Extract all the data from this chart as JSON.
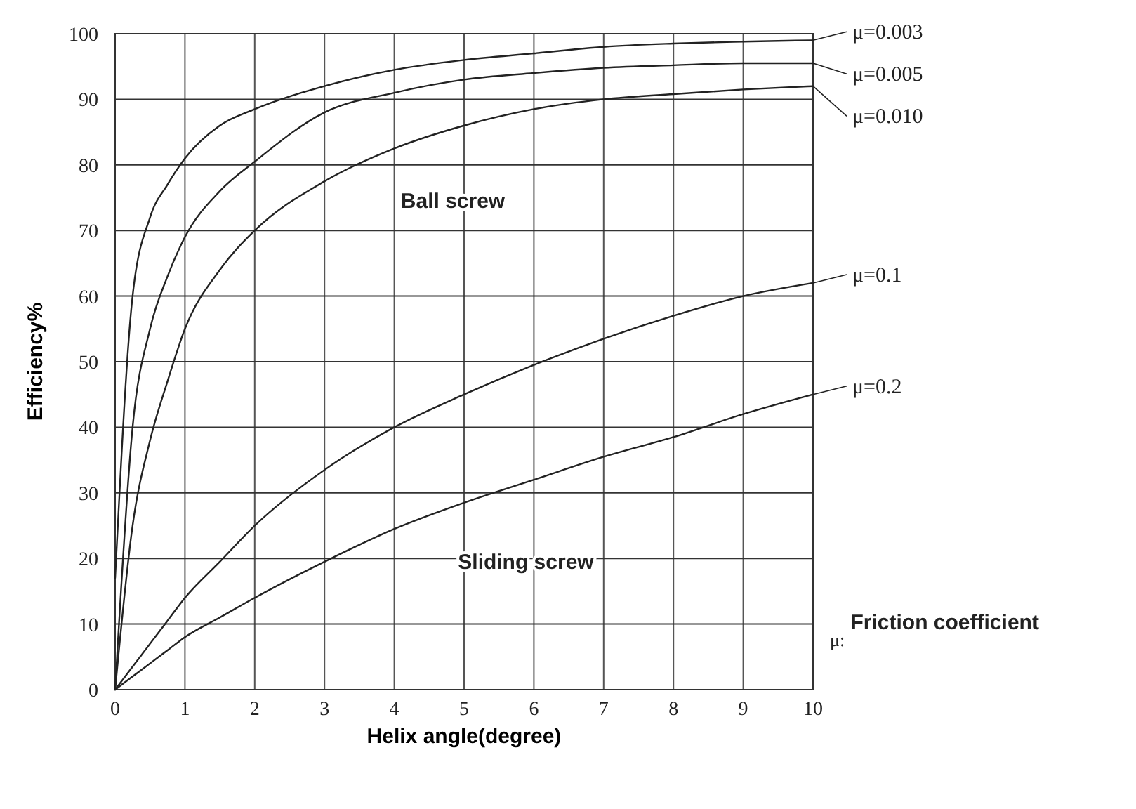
{
  "chart_data": {
    "type": "line",
    "xlabel": "Helix angle(degree)",
    "ylabel": "Efficiency%",
    "xlim": [
      0,
      10
    ],
    "xticks": [
      0,
      1,
      2,
      3,
      4,
      5,
      6,
      7,
      8,
      9,
      10
    ],
    "ylim": [
      0,
      100
    ],
    "yticks": [
      0,
      10,
      20,
      30,
      40,
      50,
      60,
      70,
      80,
      90,
      100
    ],
    "grid": true,
    "marker": "none",
    "line_style": "solid",
    "x": [
      0,
      0.25,
      0.5,
      0.75,
      1,
      1.5,
      2,
      3,
      4,
      5,
      6,
      7,
      8,
      9,
      10
    ],
    "series": [
      {
        "name": "μ=0.003",
        "color": "#222222",
        "values": [
          17,
          60,
          72,
          77,
          81,
          86,
          88.5,
          92,
          94.5,
          96,
          97,
          98,
          98.5,
          98.8,
          99
        ]
      },
      {
        "name": "μ=0.005",
        "color": "#222222",
        "values": [
          0,
          40,
          55,
          63,
          69,
          76,
          80.5,
          88,
          91,
          93,
          94,
          94.8,
          95.2,
          95.5,
          95.5
        ]
      },
      {
        "name": "μ=0.010",
        "color": "#222222",
        "values": [
          0,
          25,
          38,
          47,
          55,
          64,
          70,
          77.5,
          82.5,
          86,
          88.5,
          90,
          90.8,
          91.5,
          92
        ]
      },
      {
        "name": "μ=0.1",
        "color": "#222222",
        "values": [
          0,
          3.5,
          7,
          10.5,
          14,
          19.5,
          25,
          33.5,
          40,
          45,
          49.5,
          53.5,
          57,
          60,
          62
        ]
      },
      {
        "name": "μ=0.2",
        "color": "#222222",
        "values": [
          0,
          2,
          4,
          6,
          8,
          11,
          14,
          19.5,
          24.5,
          28.5,
          32,
          35.5,
          38.5,
          42,
          45
        ]
      }
    ],
    "legend": "right",
    "annotations": [
      "Ball screw",
      "Sliding screw",
      "$_{μ:}$ Friction coefficient"
    ]
  }
}
